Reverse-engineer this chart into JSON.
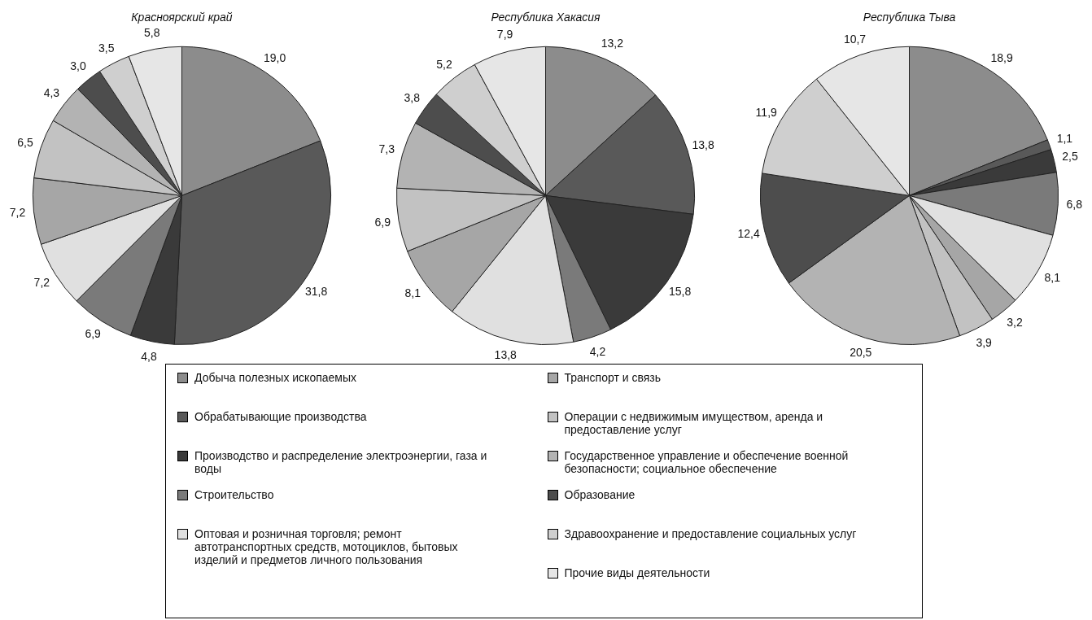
{
  "chart_data": [
    {
      "type": "pie",
      "title": "Красноярский край",
      "legend": "bottom",
      "categories": [
        "Добыча полезных ископаемых",
        "Обрабатывающие производства",
        "Производство и распределение электроэнергии, газа и воды",
        "Строительство",
        "Оптовая и розничная торговля; ремонт автотранспортных средств, мотоциклов, бытовых изделий и предметов личного пользования",
        "Транспорт и связь",
        "Операции с недвижимым имуществом, аренда и  предоставление услуг",
        "Государственное управление и обеспечение военной безопасности; социальное обеспечение",
        "Образование",
        "Здравоохранение и предоставление социальных услуг",
        "Прочие виды деятельности"
      ],
      "values": [
        19.0,
        31.8,
        4.8,
        6.9,
        7.2,
        7.2,
        6.5,
        4.3,
        3.0,
        3.5,
        5.8
      ],
      "value_labels": [
        "19,0",
        "31,8",
        "4,8",
        "6,9",
        "7,2",
        "7,2",
        "6,5",
        "4,3",
        "3,0",
        "3,5",
        "5,8"
      ],
      "colors": [
        "#8c8c8c",
        "#595959",
        "#3a3a3a",
        "#7a7a7a",
        "#e0e0e0",
        "#a6a6a6",
        "#c2c2c2",
        "#b3b3b3",
        "#4d4d4d",
        "#cfcfcf",
        "#e6e6e6"
      ]
    },
    {
      "type": "pie",
      "title": "Республика Хакасия",
      "categories": [
        null,
        null,
        null,
        null,
        null,
        null,
        null,
        null,
        null,
        null,
        null
      ],
      "values": [
        13.2,
        13.8,
        15.8,
        4.2,
        13.8,
        8.1,
        6.9,
        7.3,
        3.8,
        5.2,
        7.9
      ],
      "value_labels": [
        "13,2",
        "13,8",
        "15,8",
        "4,2",
        "13,8",
        "8,1",
        "6,9",
        "7,3",
        "3,8",
        "5,2",
        "7,9"
      ],
      "colors": [
        "#8c8c8c",
        "#595959",
        "#3a3a3a",
        "#7a7a7a",
        "#e0e0e0",
        "#a6a6a6",
        "#c2c2c2",
        "#b3b3b3",
        "#4d4d4d",
        "#cfcfcf",
        "#e6e6e6"
      ]
    },
    {
      "type": "pie",
      "title": "Республика Тыва",
      "categories": [
        null,
        null,
        null,
        null,
        null,
        null,
        null,
        null,
        null,
        null,
        null
      ],
      "values": [
        18.9,
        1.1,
        2.5,
        6.8,
        8.1,
        3.2,
        3.9,
        20.5,
        12.4,
        11.9,
        10.7
      ],
      "value_labels": [
        "18,9",
        "1,1",
        "2,5",
        "6,8",
        "8,1",
        "3,2",
        "3,9",
        "20,5",
        "12,4",
        "11,9",
        "10,7"
      ],
      "colors": [
        "#8c8c8c",
        "#595959",
        "#3a3a3a",
        "#7a7a7a",
        "#e0e0e0",
        "#a6a6a6",
        "#c2c2c2",
        "#b3b3b3",
        "#4d4d4d",
        "#cfcfcf",
        "#e6e6e6"
      ]
    }
  ]
}
